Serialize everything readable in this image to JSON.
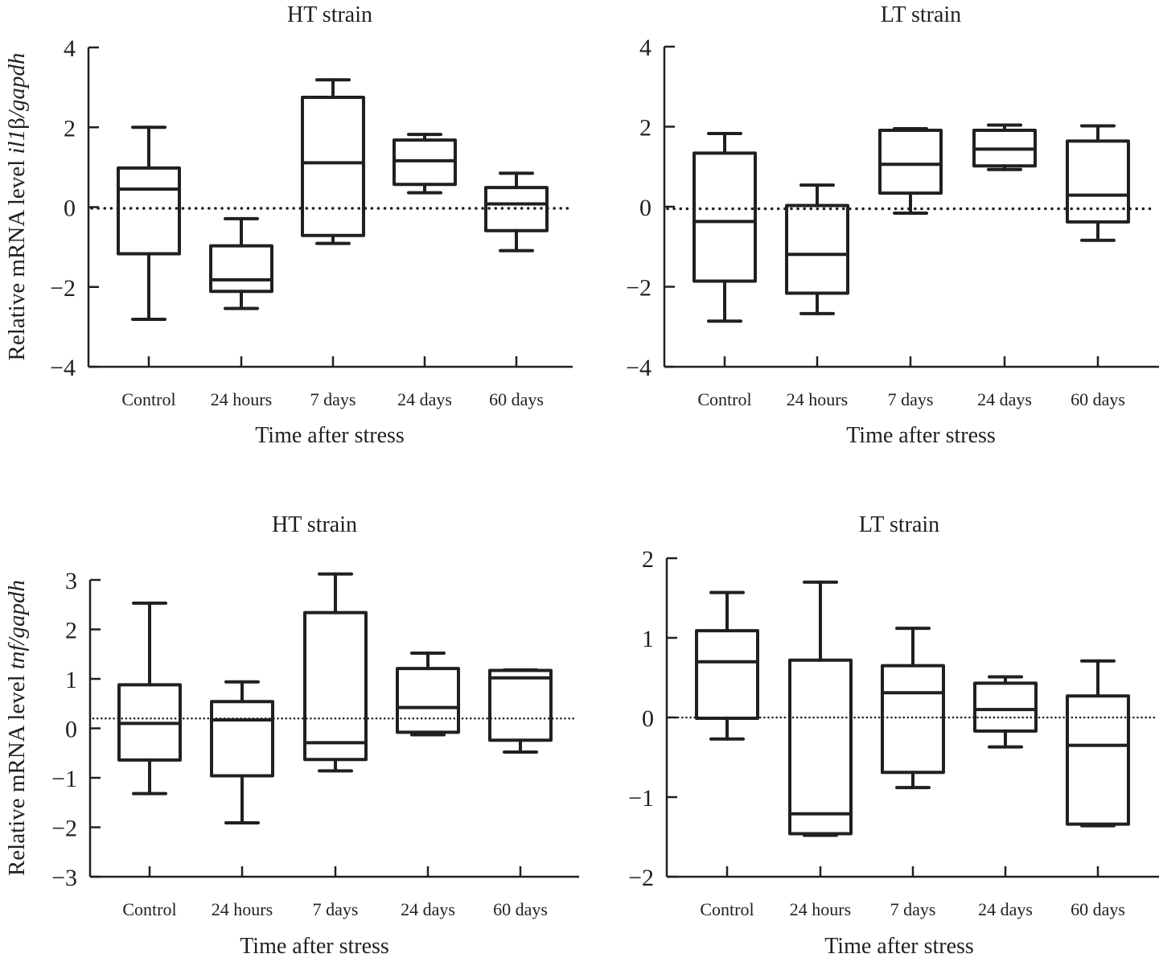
{
  "chart_data": [
    {
      "type": "box",
      "panel": "top-left",
      "title": "HT strain",
      "xlabel": "Time after stress",
      "ylabel": "Relative mRNA level il1β/gapdh",
      "ylabel_parts": [
        {
          "text": "Relative mRNA level ",
          "italic": false
        },
        {
          "text": "il1",
          "italic": true
        },
        {
          "text": "β",
          "italic": false
        },
        {
          "text": "/gapdh",
          "italic": true
        }
      ],
      "categories": [
        "Control",
        "24 hours",
        "7 days",
        "24 days",
        "60 days"
      ],
      "ylim": [
        -4,
        4
      ],
      "yticks": [
        4,
        2,
        0,
        -2,
        -4
      ],
      "ytick_labels": [
        "4",
        "2",
        "0",
        "−2",
        "−4"
      ],
      "reference_line": -0.03,
      "reference_style": "dotted-heavy",
      "boxes": [
        {
          "category": "Control",
          "whisker_low": -2.81,
          "q1": -1.17,
          "median": 0.45,
          "q3": 0.98,
          "whisker_high": 2.0
        },
        {
          "category": "24 hours",
          "whisker_low": -2.54,
          "q1": -2.11,
          "median": -1.82,
          "q3": -0.97,
          "whisker_high": -0.29
        },
        {
          "category": "7 days",
          "whisker_low": -0.91,
          "q1": -0.71,
          "median": 1.11,
          "q3": 2.75,
          "whisker_high": 3.19
        },
        {
          "category": "24 days",
          "whisker_low": 0.36,
          "q1": 0.57,
          "median": 1.16,
          "q3": 1.68,
          "whisker_high": 1.82
        },
        {
          "category": "60 days",
          "whisker_low": -1.09,
          "q1": -0.59,
          "median": 0.08,
          "q3": 0.49,
          "whisker_high": 0.85
        }
      ]
    },
    {
      "type": "box",
      "panel": "top-right",
      "title": "LT strain",
      "xlabel": "Time after stress",
      "ylabel": "",
      "ylabel_parts": [],
      "categories": [
        "Control",
        "24 hours",
        "7 days",
        "24 days",
        "60 days"
      ],
      "ylim": [
        -4,
        4
      ],
      "yticks": [
        4,
        2,
        0,
        -2,
        -4
      ],
      "ytick_labels": [
        "4",
        "2",
        "0",
        "−2",
        "−4"
      ],
      "reference_line": -0.05,
      "reference_style": "dotted-heavy",
      "boxes": [
        {
          "category": "Control",
          "whisker_low": -2.86,
          "q1": -1.86,
          "median": -0.37,
          "q3": 1.34,
          "whisker_high": 1.83
        },
        {
          "category": "24 hours",
          "whisker_low": -2.67,
          "q1": -2.16,
          "median": -1.19,
          "q3": 0.03,
          "whisker_high": 0.54
        },
        {
          "category": "7 days",
          "whisker_low": -0.16,
          "q1": 0.34,
          "median": 1.06,
          "q3": 1.91,
          "whisker_high": 1.95
        },
        {
          "category": "24 days",
          "whisker_low": 0.93,
          "q1": 1.02,
          "median": 1.44,
          "q3": 1.91,
          "whisker_high": 2.04
        },
        {
          "category": "60 days",
          "whisker_low": -0.84,
          "q1": -0.38,
          "median": 0.29,
          "q3": 1.64,
          "whisker_high": 2.02
        }
      ]
    },
    {
      "type": "box",
      "panel": "bottom-left",
      "title": "HT strain",
      "xlabel": "Time after stress",
      "ylabel": "Relative mRNA level tnf/gapdh",
      "ylabel_parts": [
        {
          "text": "Relative mRNA level ",
          "italic": false
        },
        {
          "text": "tnf/gapdh",
          "italic": true
        }
      ],
      "categories": [
        "Control",
        "24 hours",
        "7 days",
        "24 days",
        "60 days"
      ],
      "ylim": [
        -3,
        3
      ],
      "yticks": [
        3,
        2,
        1,
        0,
        -1,
        -2,
        -3
      ],
      "ytick_labels": [
        "3",
        "2",
        "1",
        "0",
        "−1",
        "−2",
        "−3"
      ],
      "reference_line": 0.2,
      "reference_style": "dotted-thin",
      "boxes": [
        {
          "category": "Control",
          "whisker_low": -1.32,
          "q1": -0.64,
          "median": 0.1,
          "q3": 0.88,
          "whisker_high": 2.53
        },
        {
          "category": "24 hours",
          "whisker_low": -1.91,
          "q1": -0.96,
          "median": 0.17,
          "q3": 0.54,
          "whisker_high": 0.94
        },
        {
          "category": "7 days",
          "whisker_low": -0.86,
          "q1": -0.63,
          "median": -0.29,
          "q3": 2.34,
          "whisker_high": 3.12
        },
        {
          "category": "24 days",
          "whisker_low": -0.13,
          "q1": -0.08,
          "median": 0.42,
          "q3": 1.21,
          "whisker_high": 1.52
        },
        {
          "category": "60 days",
          "whisker_low": -0.48,
          "q1": -0.24,
          "median": 1.02,
          "q3": 1.17,
          "whisker_high": 1.18
        }
      ]
    },
    {
      "type": "box",
      "panel": "bottom-right",
      "title": "LT strain",
      "xlabel": "Time after stress",
      "ylabel": "",
      "ylabel_parts": [],
      "categories": [
        "Control",
        "24 hours",
        "7 days",
        "24 days",
        "60 days"
      ],
      "ylim": [
        -2,
        2
      ],
      "yticks": [
        2,
        1,
        0,
        -1,
        -2
      ],
      "ytick_labels": [
        "2",
        "1",
        "0",
        "−1",
        "−2"
      ],
      "reference_line": 0.0,
      "reference_style": "dotted-thin",
      "boxes": [
        {
          "category": "Control",
          "whisker_low": -0.27,
          "q1": -0.01,
          "median": 0.7,
          "q3": 1.09,
          "whisker_high": 1.57
        },
        {
          "category": "24 hours",
          "whisker_low": -1.48,
          "q1": -1.46,
          "median": -1.21,
          "q3": 0.72,
          "whisker_high": 1.7
        },
        {
          "category": "7 days",
          "whisker_low": -0.88,
          "q1": -0.69,
          "median": 0.31,
          "q3": 0.65,
          "whisker_high": 1.12
        },
        {
          "category": "24 days",
          "whisker_low": -0.37,
          "q1": -0.17,
          "median": 0.1,
          "q3": 0.43,
          "whisker_high": 0.51
        },
        {
          "category": "60 days",
          "whisker_low": -1.36,
          "q1": -1.34,
          "median": -0.35,
          "q3": 0.27,
          "whisker_high": 0.71
        }
      ]
    }
  ]
}
